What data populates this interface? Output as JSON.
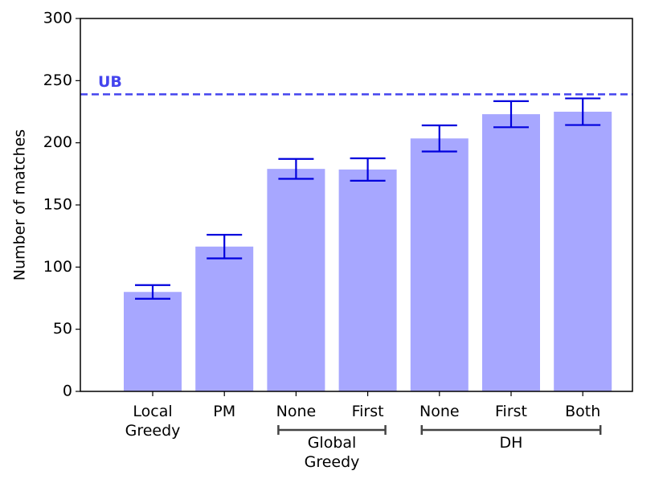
{
  "chart_data": {
    "type": "bar",
    "y_label": "Number of matches",
    "categories": [
      "Local Greedy",
      "PM",
      "None",
      "First",
      "None",
      "First",
      "Both"
    ],
    "values": [
      80,
      116.5,
      179,
      178.5,
      203.5,
      223,
      225
    ],
    "errors": [
      5.5,
      9.5,
      8,
      9,
      10.5,
      10.5,
      10.7
    ],
    "color": "#a7a7ff",
    "error_color": "#0000dd",
    "groups": [
      {
        "label": "Global Greedy",
        "span": [
          2,
          3
        ]
      },
      {
        "label": "DH",
        "span": [
          4,
          6
        ]
      }
    ],
    "reference": {
      "label": "UB",
      "value": 239,
      "color": "#4444ee"
    },
    "ylim": [
      0,
      300
    ],
    "yticks": [
      0,
      50,
      100,
      150,
      200,
      250,
      300
    ]
  }
}
